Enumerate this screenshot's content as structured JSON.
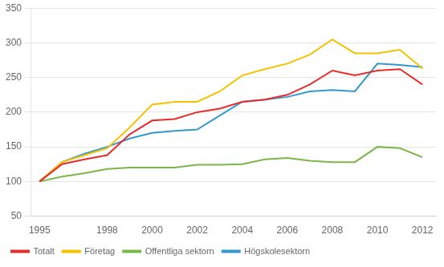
{
  "chart_data": {
    "type": "line",
    "x": [
      1995,
      1996,
      1997,
      1998,
      1999,
      2000,
      2001,
      2002,
      2003,
      2004,
      2005,
      2006,
      2007,
      2008,
      2009,
      2010,
      2011,
      2012
    ],
    "series": [
      {
        "name": "Totalt",
        "color": "#e82c2c",
        "values": [
          100,
          125,
          132,
          138,
          168,
          188,
          190,
          200,
          205,
          215,
          218,
          225,
          240,
          260,
          253,
          260,
          262,
          240
        ]
      },
      {
        "name": "Företag",
        "color": "#f5c200",
        "values": [
          100,
          128,
          138,
          148,
          178,
          211,
          215,
          215,
          230,
          253,
          262,
          270,
          283,
          305,
          285,
          285,
          290,
          263
        ]
      },
      {
        "name": "Offentliga sektorn",
        "color": "#7ab648",
        "values": [
          100,
          107,
          112,
          118,
          120,
          120,
          120,
          124,
          124,
          125,
          132,
          134,
          130,
          128,
          128,
          150,
          148,
          135
        ]
      },
      {
        "name": "Högskolesektorn",
        "color": "#3399cc",
        "values": [
          100,
          128,
          140,
          150,
          162,
          170,
          173,
          175,
          195,
          215,
          218,
          222,
          230,
          232,
          230,
          270,
          268,
          265
        ]
      }
    ],
    "xlim": [
      1994.6,
      2012.6
    ],
    "xticks": [
      1995,
      1998,
      2000,
      2002,
      2004,
      2006,
      2008,
      2010,
      2012
    ],
    "ylim": [
      50,
      350
    ],
    "yticks": [
      50,
      100,
      150,
      200,
      250,
      300,
      350
    ],
    "grid": true,
    "legend": "lower left"
  }
}
